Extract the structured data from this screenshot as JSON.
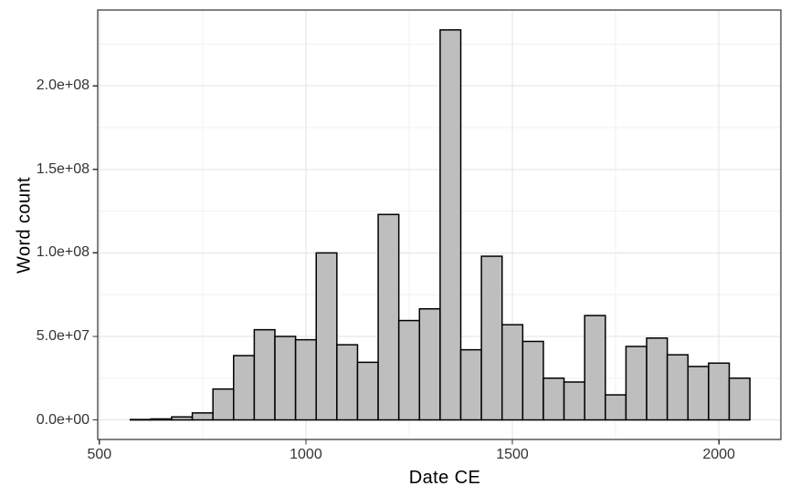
{
  "chart_data": {
    "type": "bar",
    "subtype": "histogram",
    "title": "",
    "xlabel": "Date CE",
    "ylabel": "Word count",
    "bin_width": 50,
    "bin_starts": [
      575,
      625,
      675,
      725,
      775,
      825,
      875,
      925,
      975,
      1025,
      1075,
      1125,
      1175,
      1225,
      1275,
      1325,
      1375,
      1425,
      1475,
      1525,
      1575,
      1625,
      1675,
      1725,
      1775,
      1825,
      1875,
      1925,
      1975,
      2025
    ],
    "values": [
      250000,
      600000,
      1800000,
      4200000,
      18500000,
      38500000,
      54000000,
      50000000,
      48000000,
      100000000,
      45000000,
      34500000,
      123000000,
      59500000,
      66500000,
      233500000,
      42000000,
      98000000,
      57000000,
      47000000,
      25000000,
      22700000,
      62500000,
      15000000,
      44000000,
      49000000,
      39000000,
      32000000,
      34000000,
      25000000
    ],
    "x_ticks": [
      {
        "value": 500,
        "label": "500"
      },
      {
        "value": 1000,
        "label": "1000"
      },
      {
        "value": 1500,
        "label": "1500"
      },
      {
        "value": 2000,
        "label": "2000"
      }
    ],
    "y_ticks": [
      {
        "value": 0,
        "label": "0.0e+00"
      },
      {
        "value": 50000000,
        "label": "5.0e+07"
      },
      {
        "value": 100000000,
        "label": "1.0e+08"
      },
      {
        "value": 150000000,
        "label": "1.5e+08"
      },
      {
        "value": 200000000,
        "label": "2.0e+08"
      }
    ],
    "x_minor_gridlines": [
      750,
      1250,
      1750
    ],
    "y_minor_gridlines": [
      25000000,
      75000000,
      125000000,
      175000000,
      225000000
    ],
    "xlim": [
      496,
      2150
    ],
    "ylim": [
      -11700000,
      245400000
    ],
    "grid": true,
    "legend_position": "none",
    "colors": {
      "bar_fill": "#bebebe",
      "bar_stroke": "#000000",
      "grid_major": "#e3e3e3",
      "grid_minor": "#f2f2f2",
      "panel_border": "#595959",
      "tick_mark": "#333333",
      "tick_label": "#333333",
      "axis_title": "#000000",
      "background": "#ffffff"
    }
  }
}
